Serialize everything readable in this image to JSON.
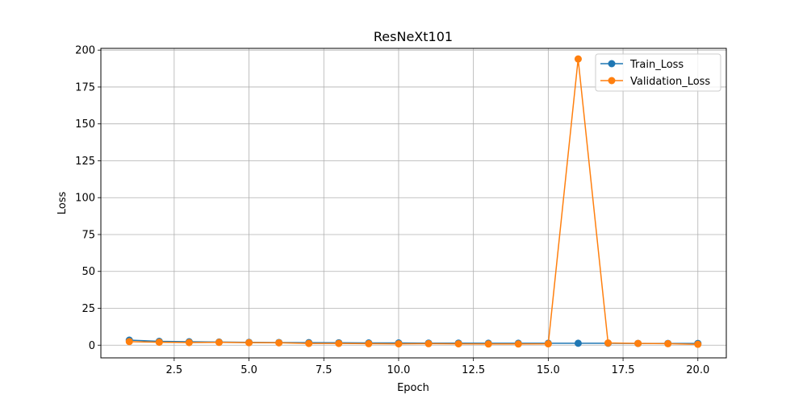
{
  "chart_data": {
    "type": "line",
    "title": "ResNeXt101",
    "xlabel": "Epoch",
    "ylabel": "Loss",
    "xlim": [
      0.05,
      20.95
    ],
    "ylim": [
      -8.6,
      201.2
    ],
    "xticks": [
      2.5,
      5.0,
      7.5,
      10.0,
      12.5,
      15.0,
      17.5,
      20.0
    ],
    "xtick_labels": [
      "2.5",
      "5.0",
      "7.5",
      "10.0",
      "12.5",
      "15.0",
      "17.5",
      "20.0"
    ],
    "yticks": [
      0,
      25,
      50,
      75,
      100,
      125,
      150,
      175,
      200
    ],
    "ytick_labels": [
      "0",
      "25",
      "50",
      "75",
      "100",
      "125",
      "150",
      "175",
      "200"
    ],
    "grid": true,
    "legend_position": "top-right",
    "x": [
      1,
      2,
      3,
      4,
      5,
      6,
      7,
      8,
      9,
      10,
      11,
      12,
      13,
      14,
      15,
      16,
      17,
      18,
      19,
      20
    ],
    "series": [
      {
        "name": "Train_Loss",
        "color": "#1f77b4",
        "values": [
          3.4,
          2.6,
          2.3,
          2.1,
          1.9,
          1.8,
          1.7,
          1.6,
          1.5,
          1.5,
          1.4,
          1.4,
          1.3,
          1.3,
          1.3,
          1.3,
          1.3,
          1.2,
          1.2,
          1.2
        ]
      },
      {
        "name": "Validation_Loss",
        "color": "#ff7f0e",
        "values": [
          2.4,
          2.0,
          1.8,
          1.9,
          1.7,
          1.6,
          1.2,
          1.2,
          1.0,
          0.9,
          1.0,
          0.9,
          0.8,
          0.8,
          0.9,
          194.0,
          1.5,
          1.2,
          1.0,
          0.6
        ]
      }
    ]
  }
}
